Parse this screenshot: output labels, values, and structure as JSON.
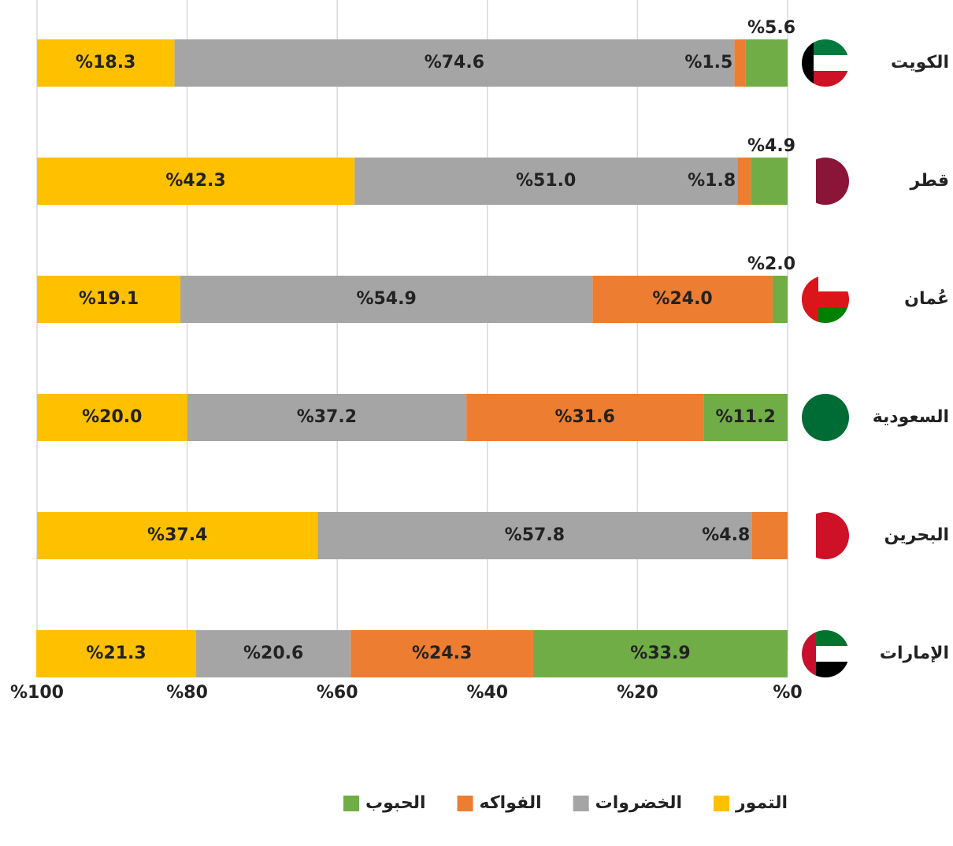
{
  "chart_data": {
    "type": "stacked-bar-horizontal",
    "categories": [
      "الكويت",
      "قطر",
      "عُمان",
      "السعودية",
      "البحرين",
      "الإمارات"
    ],
    "series": [
      {
        "name": "الحبوب",
        "color": "#70ad47",
        "values": [
          5.6,
          4.9,
          2.0,
          11.2,
          null,
          33.9
        ],
        "value_labels": [
          "%5.6",
          "%4.9",
          "%2.0",
          "%11.2",
          null,
          "%33.9"
        ]
      },
      {
        "name": "الفواكه",
        "color": "#ed7d31",
        "values": [
          1.5,
          1.8,
          24.0,
          31.6,
          4.8,
          24.3
        ],
        "value_labels": [
          "%1.5",
          "%1.8",
          "%24.0",
          "%31.6",
          "%4.8",
          "%24.3"
        ]
      },
      {
        "name": "الخضروات",
        "color": "#a5a5a5",
        "values": [
          74.6,
          51.0,
          54.9,
          37.2,
          57.8,
          20.6
        ],
        "value_labels": [
          "%74.6",
          "%51.0",
          "%54.9",
          "%37.2",
          "%57.8",
          "%20.6"
        ]
      },
      {
        "name": "التمور",
        "color": "#ffc000",
        "values": [
          18.3,
          42.3,
          19.1,
          20.0,
          37.4,
          21.3
        ],
        "value_labels": [
          "%18.3",
          "%42.3",
          "%19.1",
          "%20.0",
          "%37.4",
          "%21.3"
        ]
      }
    ],
    "xlim": [
      0,
      100
    ],
    "x_reversed": true,
    "xticks": [
      {
        "value": 0,
        "label": "%0"
      },
      {
        "value": 20,
        "label": "%20"
      },
      {
        "value": 40,
        "label": "%40"
      },
      {
        "value": 60,
        "label": "%60"
      },
      {
        "value": 80,
        "label": "%80"
      },
      {
        "value": 100,
        "label": "%100"
      }
    ],
    "grid": true,
    "legend": "bottom"
  }
}
